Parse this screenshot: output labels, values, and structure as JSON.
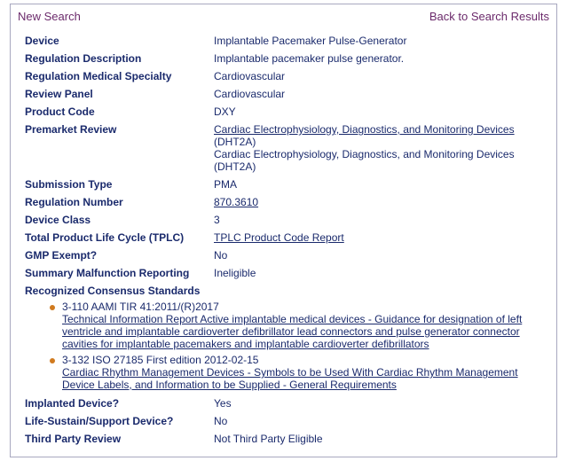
{
  "topbar": {
    "new_search": "New Search",
    "back": "Back to Search Results"
  },
  "fields": {
    "device": {
      "label": "Device",
      "value": "Implantable Pacemaker Pulse-Generator"
    },
    "reg_desc": {
      "label": "Regulation Description",
      "value": "Implantable pacemaker pulse generator."
    },
    "specialty": {
      "label": "Regulation Medical Specialty",
      "value": "Cardiovascular"
    },
    "review_panel": {
      "label": "Review Panel",
      "value": "Cardiovascular"
    },
    "product_code": {
      "label": "Product Code",
      "value": "DXY"
    },
    "premarket": {
      "label": "Premarket Review",
      "line1_link": "Cardiac Electrophysiology, Diagnostics, and Monitoring Devices ",
      "line1_tail": "(DHT2A)",
      "line2": "Cardiac Electrophysiology, Diagnostics, and Monitoring Devices (DHT2A)"
    },
    "submission_type": {
      "label": "Submission Type",
      "value": "PMA"
    },
    "reg_number": {
      "label": "Regulation Number",
      "value": "870.3610"
    },
    "device_class": {
      "label": "Device Class",
      "value": "3"
    },
    "tplc": {
      "label": "Total Product Life Cycle (TPLC)",
      "value": "TPLC Product Code Report"
    },
    "gmp": {
      "label": "GMP Exempt?",
      "value": "No"
    },
    "summary_malfunction": {
      "label": "Summary Malfunction Reporting",
      "value": "Ineligible"
    },
    "standards": {
      "label": "Recognized Consensus Standards",
      "items": [
        {
          "code": "3-110 AAMI TIR 41:2011/(R)2017",
          "title": "Technical Information Report Active implantable medical devices - Guidance for designation of left ventricle and implantable cardioverter defibrillator lead connectors and pulse generator connector cavities for implantable pacemakers and implantable cardioverter defibrillators"
        },
        {
          "code": "3-132 ISO 27185 First edition 2012-02-15",
          "title": "Cardiac Rhythm Management Devices - Symbols to be Used With Cardiac Rhythm Management Device Labels, and Information to be Supplied - General Requirements"
        }
      ]
    },
    "implanted": {
      "label": "Implanted Device?",
      "value": "Yes"
    },
    "life_sustain": {
      "label": "Life-Sustain/Support Device?",
      "value": "No"
    },
    "third_party": {
      "label": "Third Party Review",
      "value": "Not Third Party Eligible"
    }
  }
}
